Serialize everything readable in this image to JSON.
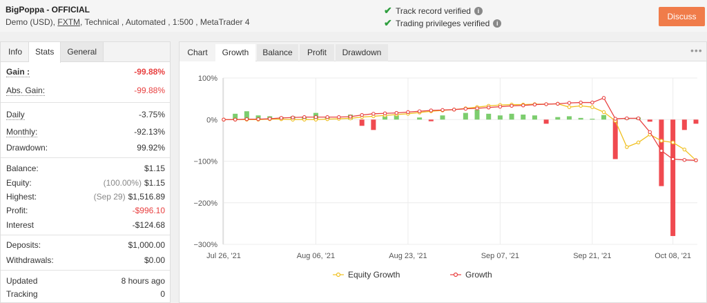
{
  "header": {
    "title": "BigPoppa - OFFICIAL",
    "account": "Demo (USD),",
    "broker": "FXTM",
    "details": ", Technical , Automated , 1:500 , MetaTrader 4",
    "verifications": [
      "Track record verified",
      "Trading privileges verified"
    ],
    "discuss_label": "Discuss"
  },
  "left_tabs": [
    "Info",
    "Stats",
    "General"
  ],
  "stats": {
    "gain": {
      "label": "Gain :",
      "value": "-99.88%"
    },
    "abs_gain": {
      "label": "Abs. Gain:",
      "value": "-99.88%"
    },
    "daily": {
      "label": "Daily",
      "value": "-3.75%"
    },
    "monthly": {
      "label": "Monthly:",
      "value": "-92.13%"
    },
    "drawdown": {
      "label": "Drawdown:",
      "value": "99.92%"
    },
    "balance": {
      "label": "Balance:",
      "value": "$1.15"
    },
    "equity": {
      "label": "Equity:",
      "note": "(100.00%)",
      "value": "$1.15"
    },
    "highest": {
      "label": "Highest:",
      "note": "(Sep 29)",
      "value": "$1,516.89"
    },
    "profit": {
      "label": "Profit:",
      "value": "-$996.10"
    },
    "interest": {
      "label": "Interest",
      "value": "-$124.68"
    },
    "deposits": {
      "label": "Deposits:",
      "value": "$1,000.00"
    },
    "withdrawals": {
      "label": "Withdrawals:",
      "value": "$0.00"
    },
    "updated": {
      "label": "Updated",
      "value": "8 hours ago"
    },
    "tracking": {
      "label": "Tracking",
      "value": "0"
    }
  },
  "chart_tabs": [
    "Chart",
    "Growth",
    "Balance",
    "Profit",
    "Drawdown"
  ],
  "more_icon": "more-dots-icon",
  "colors": {
    "accent": "#f07c4a",
    "growth": "#e84040",
    "equity": "#f0c020",
    "bar_pos": "#7ccd6e",
    "bar_neg": "#f04a50",
    "verified": "#2e9e3e"
  },
  "chart_data": {
    "type": "bar",
    "title": "",
    "ylim": [
      -300,
      100
    ],
    "y_ticks": [
      "100%",
      "0%",
      "−100%",
      "−200%",
      "−300%"
    ],
    "x_ticks": [
      "Jul 26, '21",
      "Aug 06, '21",
      "Aug 23, '21",
      "Sep 07, '21",
      "Sep 21, '21",
      "Oct 08, '21"
    ],
    "legend": [
      "Equity Growth",
      "Growth"
    ],
    "growth": [
      0,
      0,
      1,
      1,
      2,
      4,
      5,
      6,
      6,
      6,
      6,
      7,
      11,
      14,
      15,
      16,
      18,
      20,
      22,
      23,
      24,
      26,
      27,
      29,
      31,
      33,
      34,
      36,
      37,
      38,
      40,
      41,
      41,
      52,
      2,
      3,
      3,
      -30,
      -75,
      -95,
      -97,
      -98
    ],
    "equity_growth": [
      0,
      0,
      0,
      0,
      1,
      1,
      0,
      0,
      0,
      1,
      2,
      3,
      6,
      8,
      10,
      12,
      14,
      17,
      20,
      22,
      24,
      27,
      30,
      33,
      35,
      36,
      36,
      37,
      37,
      38,
      30,
      33,
      30,
      18,
      -3,
      -66,
      -55,
      -36,
      -51,
      -55,
      -72,
      -98
    ],
    "daily_bars": [
      0,
      14,
      20,
      10,
      8,
      6,
      8,
      7,
      16,
      5,
      0,
      12,
      -15,
      -25,
      8,
      10,
      0,
      5,
      -4,
      10,
      0,
      16,
      24,
      14,
      10,
      14,
      12,
      10,
      -10,
      6,
      8,
      4,
      2,
      11,
      -95,
      4,
      5,
      -5,
      -160,
      -280,
      -25,
      -10
    ]
  }
}
